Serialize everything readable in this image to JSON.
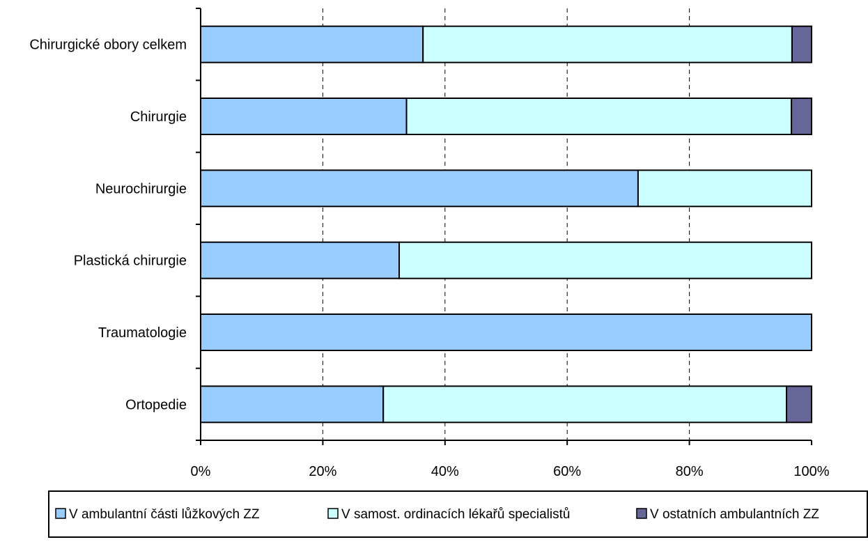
{
  "chart_data": {
    "type": "bar",
    "orientation": "horizontal",
    "stacked": "percent",
    "categories": [
      "Chirurgické obory celkem",
      "Chirurgie",
      "Neurochirurgie",
      "Plastická chirurgie",
      "Traumatologie",
      "Ortopedie"
    ],
    "series": [
      {
        "name": "V ambulantní části lůžkových ZZ",
        "color": "#99ccff",
        "values": [
          36.4,
          33.7,
          71.6,
          32.5,
          100,
          29.9
        ]
      },
      {
        "name": "V samost. ordinacích lékařů specialistů",
        "color": "#ccffff",
        "values": [
          60.4,
          63.0,
          28.4,
          67.5,
          0,
          66.0
        ]
      },
      {
        "name": "V ostatních ambulantních ZZ",
        "color": "#666699",
        "values": [
          3.2,
          3.3,
          0,
          0,
          0,
          4.1
        ]
      }
    ],
    "xlim": [
      0,
      100
    ],
    "xticks": [
      "0%",
      "20%",
      "40%",
      "60%",
      "80%",
      "100%"
    ],
    "xgrid": "dashed",
    "legend_position": "bottom",
    "title": "",
    "xlabel": "",
    "ylabel": ""
  }
}
